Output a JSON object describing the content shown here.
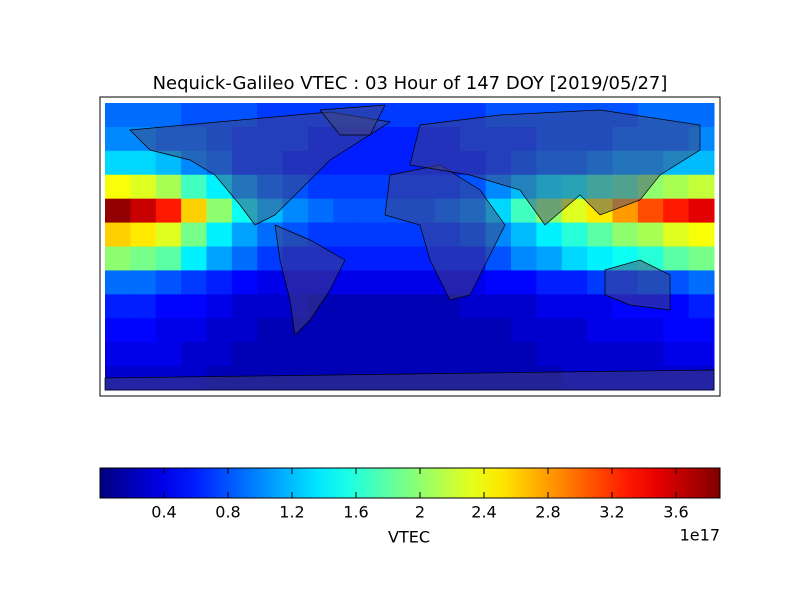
{
  "chart_data": {
    "type": "heatmap",
    "title": "Nequick-Galileo VTEC : 03 Hour of 147 DOY [2019/05/27]",
    "z": [
      [
        0.9,
        0.9,
        0.9,
        0.8,
        0.8,
        0.8,
        0.7,
        0.7,
        0.7,
        0.7,
        0.7,
        0.7,
        0.7,
        0.7,
        0.7,
        0.8,
        0.8,
        0.8,
        0.8,
        0.8,
        0.8,
        0.9,
        0.9,
        0.9
      ],
      [
        1.0,
        1.0,
        0.9,
        0.9,
        0.8,
        0.7,
        0.7,
        0.7,
        0.6,
        0.6,
        0.6,
        0.6,
        0.6,
        0.6,
        0.7,
        0.7,
        0.7,
        0.8,
        0.8,
        0.8,
        0.9,
        0.9,
        0.9,
        1.0
      ],
      [
        1.3,
        1.3,
        1.2,
        1.0,
        0.9,
        0.7,
        0.7,
        0.6,
        0.6,
        0.6,
        0.6,
        0.6,
        0.6,
        0.6,
        0.6,
        0.7,
        0.8,
        0.9,
        0.9,
        1.0,
        1.1,
        1.1,
        1.2,
        1.2
      ],
      [
        2.4,
        2.3,
        2.1,
        1.7,
        1.4,
        1.1,
        0.9,
        0.8,
        0.7,
        0.7,
        0.7,
        0.7,
        0.7,
        0.7,
        0.8,
        1.0,
        1.2,
        1.4,
        1.5,
        1.7,
        1.8,
        2.0,
        2.1,
        2.2
      ],
      [
        3.8,
        3.6,
        3.3,
        2.6,
        2.0,
        1.5,
        1.2,
        1.0,
        0.9,
        0.8,
        0.8,
        0.8,
        0.8,
        0.9,
        1.0,
        1.3,
        1.7,
        2.0,
        2.3,
        2.5,
        2.8,
        3.1,
        3.3,
        3.5
      ],
      [
        2.6,
        2.5,
        2.3,
        1.9,
        1.4,
        1.1,
        0.9,
        0.8,
        0.7,
        0.7,
        0.7,
        0.7,
        0.7,
        0.7,
        0.8,
        1.0,
        1.2,
        1.4,
        1.6,
        1.8,
        2.0,
        2.1,
        2.3,
        2.4
      ],
      [
        2.0,
        1.9,
        1.8,
        1.4,
        1.1,
        0.9,
        0.7,
        0.6,
        0.6,
        0.6,
        0.6,
        0.6,
        0.6,
        0.6,
        0.6,
        0.8,
        1.0,
        1.1,
        1.3,
        1.4,
        1.5,
        1.6,
        1.8,
        1.9
      ],
      [
        0.9,
        0.9,
        0.8,
        0.7,
        0.6,
        0.5,
        0.4,
        0.4,
        0.4,
        0.4,
        0.4,
        0.4,
        0.4,
        0.4,
        0.4,
        0.5,
        0.5,
        0.6,
        0.6,
        0.7,
        0.7,
        0.8,
        0.8,
        0.9
      ],
      [
        0.6,
        0.6,
        0.5,
        0.5,
        0.4,
        0.3,
        0.3,
        0.3,
        0.2,
        0.2,
        0.2,
        0.2,
        0.2,
        0.2,
        0.3,
        0.3,
        0.3,
        0.4,
        0.4,
        0.4,
        0.5,
        0.5,
        0.5,
        0.6
      ],
      [
        0.5,
        0.5,
        0.4,
        0.4,
        0.3,
        0.3,
        0.2,
        0.2,
        0.2,
        0.2,
        0.2,
        0.2,
        0.2,
        0.2,
        0.2,
        0.2,
        0.3,
        0.3,
        0.3,
        0.4,
        0.4,
        0.4,
        0.5,
        0.5
      ],
      [
        0.4,
        0.4,
        0.4,
        0.3,
        0.3,
        0.2,
        0.2,
        0.2,
        0.2,
        0.2,
        0.2,
        0.2,
        0.2,
        0.2,
        0.2,
        0.2,
        0.2,
        0.3,
        0.3,
        0.3,
        0.3,
        0.3,
        0.4,
        0.4
      ],
      [
        0.3,
        0.3,
        0.3,
        0.3,
        0.2,
        0.2,
        0.2,
        0.2,
        0.2,
        0.2,
        0.2,
        0.2,
        0.2,
        0.2,
        0.2,
        0.2,
        0.2,
        0.2,
        0.3,
        0.3,
        0.3,
        0.3,
        0.3,
        0.3
      ]
    ],
    "clim": [
      0,
      3.875
    ],
    "colorbar_ticks": [
      0.4,
      0.8,
      1.2,
      1.6,
      2.0,
      2.4,
      2.8,
      3.2,
      3.6
    ],
    "colorbar_label": "VTEC",
    "offset_label": "1e17",
    "colormap": "jet"
  }
}
